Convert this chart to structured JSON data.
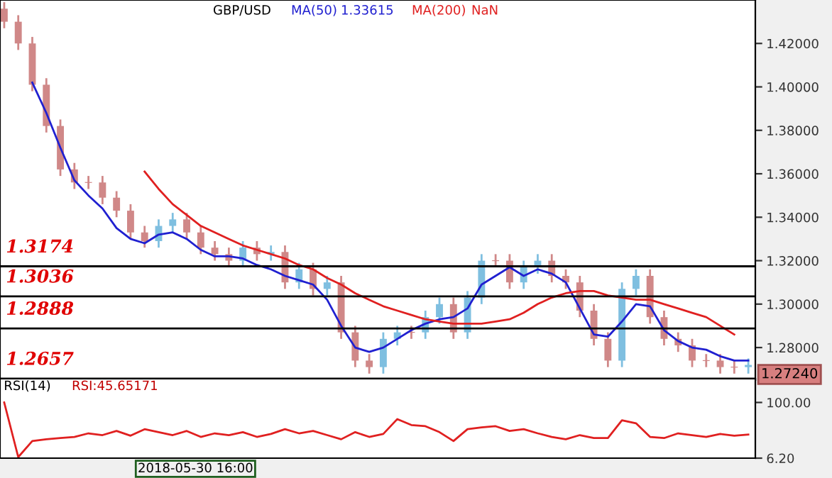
{
  "chart_data": [
    {
      "type": "candlestick",
      "title": "GBP/USD",
      "categories": [
        null,
        null,
        null,
        null,
        null,
        null,
        null,
        null,
        null,
        null,
        null,
        null,
        null,
        null,
        null,
        null,
        null,
        null,
        null,
        null,
        null,
        null,
        null,
        null,
        null,
        null,
        null,
        null,
        null,
        null,
        null,
        null,
        null,
        null,
        null,
        null,
        null,
        null,
        null,
        null,
        null,
        null,
        null,
        null,
        null,
        null,
        null,
        null,
        null,
        null,
        null,
        null,
        null,
        null
      ],
      "ohlc": [
        [
          1.436,
          1.439,
          1.427,
          1.43
        ],
        [
          1.43,
          1.433,
          1.417,
          1.42
        ],
        [
          1.42,
          1.423,
          1.398,
          1.401
        ],
        [
          1.401,
          1.404,
          1.379,
          1.382
        ],
        [
          1.382,
          1.385,
          1.359,
          1.362
        ],
        [
          1.362,
          1.365,
          1.353,
          1.356
        ],
        [
          1.356,
          1.359,
          1.353,
          1.356
        ],
        [
          1.356,
          1.359,
          1.346,
          1.349
        ],
        [
          1.349,
          1.352,
          1.34,
          1.343
        ],
        [
          1.343,
          1.346,
          1.33,
          1.333
        ],
        [
          1.333,
          1.336,
          1.326,
          1.329
        ],
        [
          1.329,
          1.339,
          1.326,
          1.336
        ],
        [
          1.336,
          1.342,
          1.333,
          1.339
        ],
        [
          1.339,
          1.342,
          1.33,
          1.333
        ],
        [
          1.333,
          1.336,
          1.323,
          1.326
        ],
        [
          1.326,
          1.329,
          1.32,
          1.323
        ],
        [
          1.323,
          1.326,
          1.317,
          1.32
        ],
        [
          1.32,
          1.329,
          1.317,
          1.326
        ],
        [
          1.326,
          1.329,
          1.32,
          1.323
        ],
        [
          1.323,
          1.327,
          1.32,
          1.324
        ],
        [
          1.324,
          1.327,
          1.307,
          1.31
        ],
        [
          1.31,
          1.319,
          1.307,
          1.316
        ],
        [
          1.316,
          1.319,
          1.304,
          1.307
        ],
        [
          1.307,
          1.313,
          1.304,
          1.31
        ],
        [
          1.31,
          1.313,
          1.284,
          1.287
        ],
        [
          1.287,
          1.29,
          1.271,
          1.274
        ],
        [
          1.274,
          1.277,
          1.268,
          1.271
        ],
        [
          1.271,
          1.287,
          1.268,
          1.284
        ],
        [
          1.284,
          1.29,
          1.281,
          1.287
        ],
        [
          1.287,
          1.29,
          1.284,
          1.287
        ],
        [
          1.287,
          1.297,
          1.284,
          1.294
        ],
        [
          1.294,
          1.303,
          1.291,
          1.3
        ],
        [
          1.3,
          1.303,
          1.284,
          1.287
        ],
        [
          1.287,
          1.306,
          1.284,
          1.303
        ],
        [
          1.303,
          1.323,
          1.3,
          1.32
        ],
        [
          1.32,
          1.323,
          1.317,
          1.32
        ],
        [
          1.32,
          1.323,
          1.307,
          1.31
        ],
        [
          1.31,
          1.32,
          1.307,
          1.317
        ],
        [
          1.317,
          1.323,
          1.314,
          1.32
        ],
        [
          1.32,
          1.323,
          1.31,
          1.313
        ],
        [
          1.313,
          1.316,
          1.307,
          1.31
        ],
        [
          1.31,
          1.313,
          1.294,
          1.297
        ],
        [
          1.297,
          1.3,
          1.281,
          1.284
        ],
        [
          1.284,
          1.287,
          1.271,
          1.274
        ],
        [
          1.274,
          1.31,
          1.271,
          1.307
        ],
        [
          1.307,
          1.316,
          1.304,
          1.313
        ],
        [
          1.313,
          1.316,
          1.291,
          1.294
        ],
        [
          1.294,
          1.297,
          1.281,
          1.284
        ],
        [
          1.284,
          1.287,
          1.278,
          1.281
        ],
        [
          1.281,
          1.284,
          1.271,
          1.274
        ],
        [
          1.274,
          1.277,
          1.271,
          1.274
        ],
        [
          1.274,
          1.277,
          1.268,
          1.271
        ],
        [
          1.271,
          1.274,
          1.268,
          1.271
        ],
        [
          1.271,
          1.275,
          1.268,
          1.272
        ]
      ],
      "colors": [
        "#d08888",
        "#d08888",
        "#d08888",
        "#d08888",
        "#d08888",
        "#d08888",
        "#d08888",
        "#d08888",
        "#d08888",
        "#d08888",
        "#d08888",
        "#7fbfe0",
        "#7fbfe0",
        "#d08888",
        "#d08888",
        "#d08888",
        "#d08888",
        "#7fbfe0",
        "#d08888",
        "#7fbfe0",
        "#d08888",
        "#7fbfe0",
        "#d08888",
        "#7fbfe0",
        "#d08888",
        "#d08888",
        "#d08888",
        "#7fbfe0",
        "#7fbfe0",
        "#d08888",
        "#7fbfe0",
        "#7fbfe0",
        "#d08888",
        "#7fbfe0",
        "#7fbfe0",
        "#d08888",
        "#d08888",
        "#7fbfe0",
        "#7fbfe0",
        "#d08888",
        "#d08888",
        "#d08888",
        "#d08888",
        "#d08888",
        "#7fbfe0",
        "#7fbfe0",
        "#d08888",
        "#d08888",
        "#d08888",
        "#d08888",
        "#d08888",
        "#d08888",
        "#d08888",
        "#7fbfe0"
      ],
      "series": [
        {
          "name": "MA(50)",
          "type": "line",
          "color": "#2020d0",
          "values": [
            null,
            null,
            1.402,
            1.388,
            1.372,
            1.357,
            1.35,
            1.344,
            1.335,
            1.33,
            1.328,
            1.332,
            1.333,
            1.33,
            1.325,
            1.322,
            1.322,
            1.321,
            1.318,
            1.316,
            1.313,
            1.311,
            1.309,
            1.302,
            1.29,
            1.28,
            1.278,
            1.28,
            1.284,
            1.288,
            1.291,
            1.293,
            1.294,
            1.298,
            1.309,
            1.313,
            1.317,
            1.313,
            1.316,
            1.314,
            1.31,
            1.298,
            1.286,
            1.285,
            1.292,
            1.3,
            1.299,
            1.288,
            1.283,
            1.28,
            1.279,
            1.276,
            1.274,
            1.274
          ]
        },
        {
          "name": "MA(200)",
          "type": "line",
          "color": "#e02020",
          "values": [
            null,
            null,
            null,
            null,
            null,
            null,
            null,
            null,
            null,
            null,
            1.361,
            1.353,
            1.346,
            1.341,
            1.336,
            1.333,
            1.33,
            1.327,
            1.325,
            1.323,
            1.321,
            1.318,
            1.316,
            1.312,
            1.309,
            1.305,
            1.302,
            1.299,
            1.297,
            1.295,
            1.293,
            1.292,
            1.291,
            1.291,
            1.291,
            1.292,
            1.293,
            1.296,
            1.3,
            1.303,
            1.305,
            1.306,
            1.306,
            1.304,
            1.303,
            1.302,
            1.302,
            1.3,
            1.298,
            1.296,
            1.294,
            1.29,
            1.286,
            null
          ]
        }
      ],
      "ylim": [
        1.265,
        1.44
      ],
      "yticks": [
        {
          "value": 1.28,
          "label": "1.28000"
        },
        {
          "value": 1.3,
          "label": "1.30000"
        },
        {
          "value": 1.32,
          "label": "1.32000"
        },
        {
          "value": 1.34,
          "label": "1.34000"
        },
        {
          "value": 1.36,
          "label": "1.36000"
        },
        {
          "value": 1.38,
          "label": "1.38000"
        },
        {
          "value": 1.4,
          "label": "1.40000"
        },
        {
          "value": 1.42,
          "label": "1.42000"
        }
      ],
      "ref_lines": [
        {
          "axis": "y",
          "value": 1.3174,
          "label": "1.3174",
          "color": "#000000"
        },
        {
          "axis": "y",
          "value": 1.3036,
          "label": "1.3036",
          "color": "#000000"
        },
        {
          "axis": "y",
          "value": 1.2888,
          "label": "1.2888",
          "color": "#000000"
        },
        {
          "axis": "y",
          "value": 1.2657,
          "label": "1.2657",
          "color": "#000000"
        }
      ],
      "annotations": [
        "1.33615",
        "NaN",
        "1.27240"
      ],
      "legend": "top left",
      "tick_labels": "y",
      "grid": false
    },
    {
      "type": "line",
      "title": "RSI(14)",
      "categories": [
        null,
        null,
        null,
        null,
        null,
        null,
        null,
        null,
        null,
        null,
        null,
        null,
        null,
        null,
        null,
        null,
        null,
        null,
        null,
        null,
        null,
        null,
        null,
        null,
        null,
        null,
        null,
        null,
        null,
        null,
        null,
        null,
        null,
        null,
        null,
        null,
        null,
        null,
        null,
        null,
        null,
        null,
        null,
        null,
        null,
        null,
        null,
        null,
        null,
        null,
        null,
        null,
        null,
        null
      ],
      "series": [
        {
          "color": "#e02020",
          "values": [
            100,
            8,
            35,
            38,
            40,
            42,
            48,
            45,
            52,
            44,
            55,
            50,
            45,
            52,
            42,
            48,
            45,
            50,
            42,
            47,
            55,
            48,
            52,
            45,
            38,
            50,
            42,
            47,
            72,
            62,
            60,
            50,
            35,
            55,
            58,
            60,
            52,
            55,
            48,
            42,
            38,
            45,
            40,
            40,
            70,
            65,
            42,
            40,
            48,
            45,
            42,
            47,
            44,
            46
          ]
        }
      ],
      "ylim": [
        6.2,
        140
      ],
      "yticks": [
        {
          "value": 6.2,
          "label": "6.20"
        },
        {
          "value": 100,
          "label": "100.00"
        }
      ],
      "annotations": [
        "RSI:45.65171",
        "2018-05-30 16:00"
      ],
      "tick_labels": "y",
      "grid": false
    }
  ]
}
